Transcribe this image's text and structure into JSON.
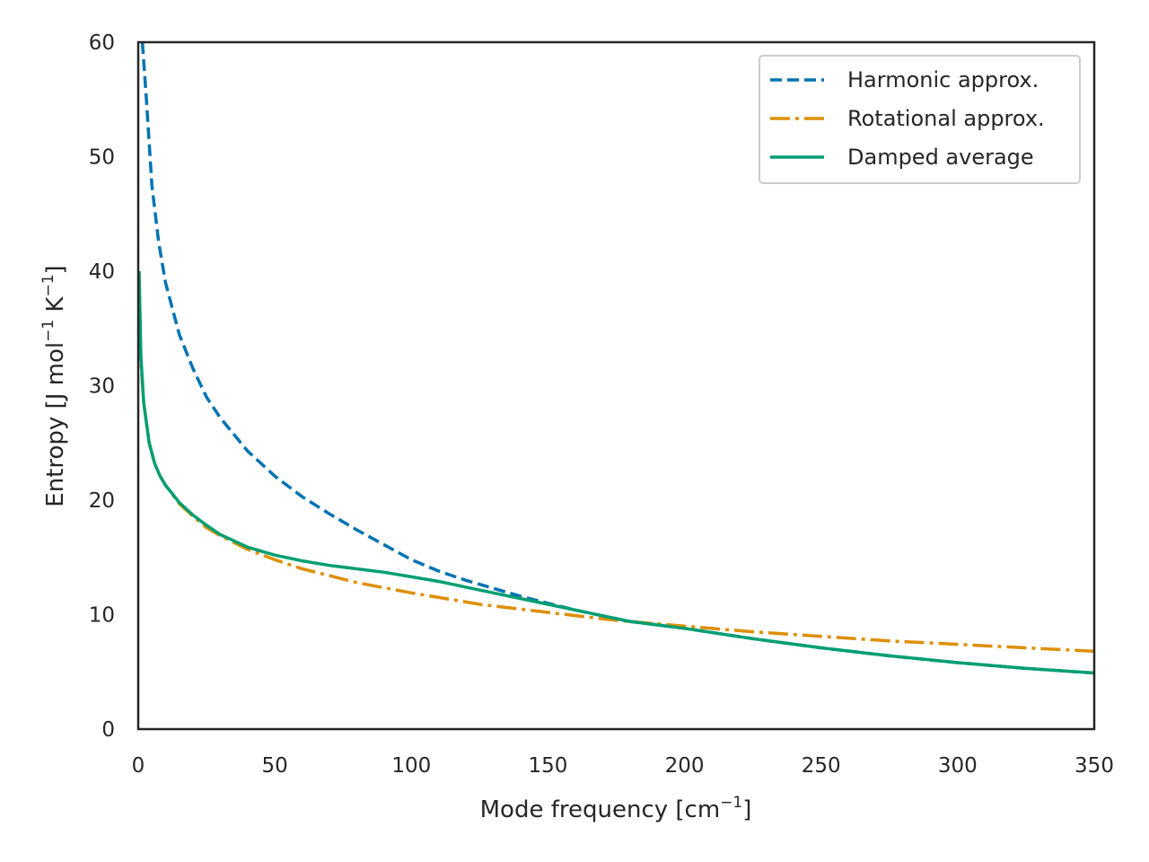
{
  "chart_data": {
    "type": "line",
    "title": "",
    "xlabel": "Mode frequency [cm",
    "xlabel_sup": "−1",
    "xlabel_end": "]",
    "ylabel": "Entropy [J mol",
    "ylabel_sup1": "−1",
    "ylabel_mid": " K",
    "ylabel_sup2": "−1",
    "ylabel_end": "]",
    "xlim": [
      0,
      350
    ],
    "ylim": [
      0,
      60
    ],
    "x_ticks": [
      "0",
      "50",
      "100",
      "150",
      "200",
      "250",
      "300",
      "350"
    ],
    "y_ticks": [
      "0",
      "10",
      "20",
      "30",
      "40",
      "50",
      "60"
    ],
    "grid": false,
    "legend_position": "top-right",
    "series": [
      {
        "name": "Harmonic approx.",
        "color": "#0173b2",
        "style": "dashed",
        "points": [
          [
            1.5,
            60
          ],
          [
            3,
            55
          ],
          [
            5,
            47.5
          ],
          [
            7.5,
            42.5
          ],
          [
            10,
            39
          ],
          [
            15,
            34.5
          ],
          [
            20,
            31.5
          ],
          [
            25,
            29
          ],
          [
            30,
            27.2
          ],
          [
            40,
            24.3
          ],
          [
            50,
            22.1
          ],
          [
            60,
            20.3
          ],
          [
            70,
            18.8
          ],
          [
            80,
            17.4
          ],
          [
            90,
            16.1
          ],
          [
            100,
            14.8
          ],
          [
            110,
            13.8
          ],
          [
            120,
            13.0
          ],
          [
            130,
            12.3
          ],
          [
            140,
            11.6
          ],
          [
            150,
            11.0
          ],
          [
            160,
            10.4
          ],
          [
            170,
            9.9
          ],
          [
            180,
            9.4
          ],
          [
            200,
            8.8
          ],
          [
            225,
            7.9
          ],
          [
            250,
            7.1
          ],
          [
            275,
            6.4
          ],
          [
            300,
            5.8
          ],
          [
            325,
            5.3
          ],
          [
            350,
            4.9
          ]
        ]
      },
      {
        "name": "Rotational approx.",
        "color": "#de8f05",
        "style": "dashdot",
        "points": [
          [
            0.3,
            40
          ],
          [
            1,
            32
          ],
          [
            2,
            28.5
          ],
          [
            4,
            25
          ],
          [
            6,
            23.2
          ],
          [
            8,
            22.1
          ],
          [
            10,
            21.3
          ],
          [
            15,
            19.7
          ],
          [
            20,
            18.6
          ],
          [
            25,
            17.6
          ],
          [
            30,
            16.9
          ],
          [
            40,
            15.7
          ],
          [
            50,
            14.8
          ],
          [
            60,
            14.0
          ],
          [
            70,
            13.4
          ],
          [
            80,
            12.8
          ],
          [
            100,
            11.9
          ],
          [
            125,
            10.9
          ],
          [
            150,
            10.2
          ],
          [
            175,
            9.5
          ],
          [
            200,
            9.0
          ],
          [
            225,
            8.5
          ],
          [
            250,
            8.1
          ],
          [
            275,
            7.7
          ],
          [
            300,
            7.4
          ],
          [
            325,
            7.1
          ],
          [
            350,
            6.8
          ]
        ]
      },
      {
        "name": "Damped average",
        "color": "#029e73",
        "style": "solid",
        "points": [
          [
            0.3,
            40
          ],
          [
            1,
            32.5
          ],
          [
            2,
            28.5
          ],
          [
            4,
            25
          ],
          [
            6,
            23.2
          ],
          [
            8,
            22.1
          ],
          [
            10,
            21.3
          ],
          [
            15,
            19.8
          ],
          [
            20,
            18.7
          ],
          [
            25,
            17.8
          ],
          [
            30,
            17.0
          ],
          [
            40,
            15.9
          ],
          [
            50,
            15.2
          ],
          [
            60,
            14.7
          ],
          [
            70,
            14.3
          ],
          [
            80,
            14.0
          ],
          [
            90,
            13.7
          ],
          [
            100,
            13.3
          ],
          [
            110,
            12.9
          ],
          [
            120,
            12.4
          ],
          [
            130,
            11.9
          ],
          [
            140,
            11.4
          ],
          [
            150,
            10.9
          ],
          [
            160,
            10.4
          ],
          [
            170,
            9.9
          ],
          [
            180,
            9.4
          ],
          [
            200,
            8.8
          ],
          [
            225,
            7.9
          ],
          [
            250,
            7.1
          ],
          [
            275,
            6.4
          ],
          [
            300,
            5.8
          ],
          [
            325,
            5.3
          ],
          [
            350,
            4.9
          ]
        ]
      }
    ]
  }
}
